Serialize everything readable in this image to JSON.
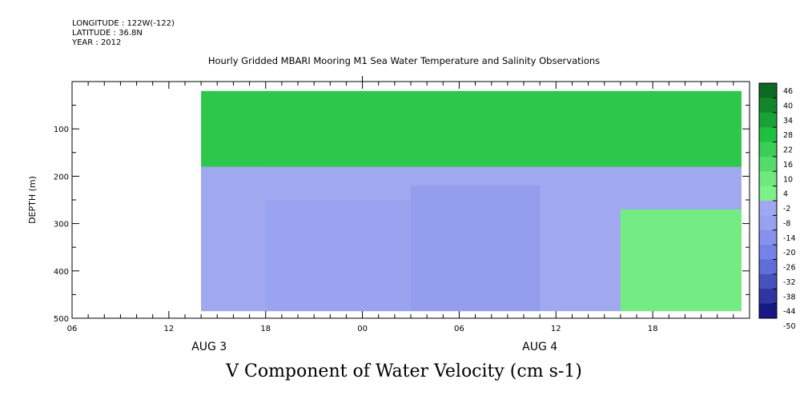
{
  "header": {
    "longitude": "LONGITUDE : 122W(-122)",
    "latitude": "LATITUDE : 36.8N",
    "year": "YEAR : 2012"
  },
  "chart_data": {
    "type": "heatmap",
    "title": "Hourly Gridded MBARI Mooring M1 Sea Water Temperature and Salinity Observations",
    "variable_title": "V Component of Water Velocity (cm s-1)",
    "ylabel": "DEPTH (m)",
    "ylim": [
      500,
      0
    ],
    "y_ticks": [
      {
        "value": 100,
        "label": "100"
      },
      {
        "value": 200,
        "label": "200"
      },
      {
        "value": 300,
        "label": "300"
      },
      {
        "value": 400,
        "label": "400"
      },
      {
        "value": 500,
        "label": "500"
      }
    ],
    "x_hours_range": [
      0,
      42
    ],
    "x_ticks": [
      {
        "hour": 0,
        "label": "06"
      },
      {
        "hour": 6,
        "label": "12"
      },
      {
        "hour": 12,
        "label": "18"
      },
      {
        "hour": 18,
        "label": "00"
      },
      {
        "hour": 24,
        "label": "06"
      },
      {
        "hour": 30,
        "label": "12"
      },
      {
        "hour": 36,
        "label": "18"
      }
    ],
    "date_labels": [
      {
        "hour": 8.5,
        "label": "AUG 3"
      },
      {
        "hour": 29,
        "label": "AUG 4"
      }
    ],
    "data_extent": {
      "hour_start": 8,
      "hour_end": 41.5,
      "depth_top": 20,
      "depth_bottom": 485
    },
    "colorbar": {
      "levels": [
        -50,
        -44,
        -38,
        -32,
        -26,
        -20,
        -14,
        -8,
        -2,
        4,
        10,
        16,
        22,
        28,
        34,
        40,
        46
      ],
      "labels": [
        "46",
        "40",
        "34",
        "28",
        "22",
        "16",
        "10",
        "4",
        "-2",
        "-8",
        "-14",
        "-20",
        "-26",
        "-32",
        "-38",
        "-44",
        "-50"
      ]
    },
    "colors": {
      "pos_dark": "#0a5a1e",
      "pos_mid": "#1fc040",
      "pos_light": "#7ef08a",
      "neg_light": "#a0a8f0",
      "neg_mid": "#6c7ce8",
      "neg_dark": "#0a0a78"
    },
    "field_regions": [
      {
        "hours": [
          8,
          41.5
        ],
        "depths": [
          20,
          180
        ],
        "value": 22,
        "note": "upper layer (positive)"
      },
      {
        "hours": [
          8,
          12
        ],
        "depths": [
          180,
          485
        ],
        "value": -6
      },
      {
        "hours": [
          12,
          21
        ],
        "depths": [
          250,
          485
        ],
        "value": -10
      },
      {
        "hours": [
          21,
          29
        ],
        "depths": [
          220,
          485
        ],
        "value": -12
      },
      {
        "hours": [
          34,
          41.5
        ],
        "depths": [
          270,
          485
        ],
        "value": 6
      }
    ]
  }
}
